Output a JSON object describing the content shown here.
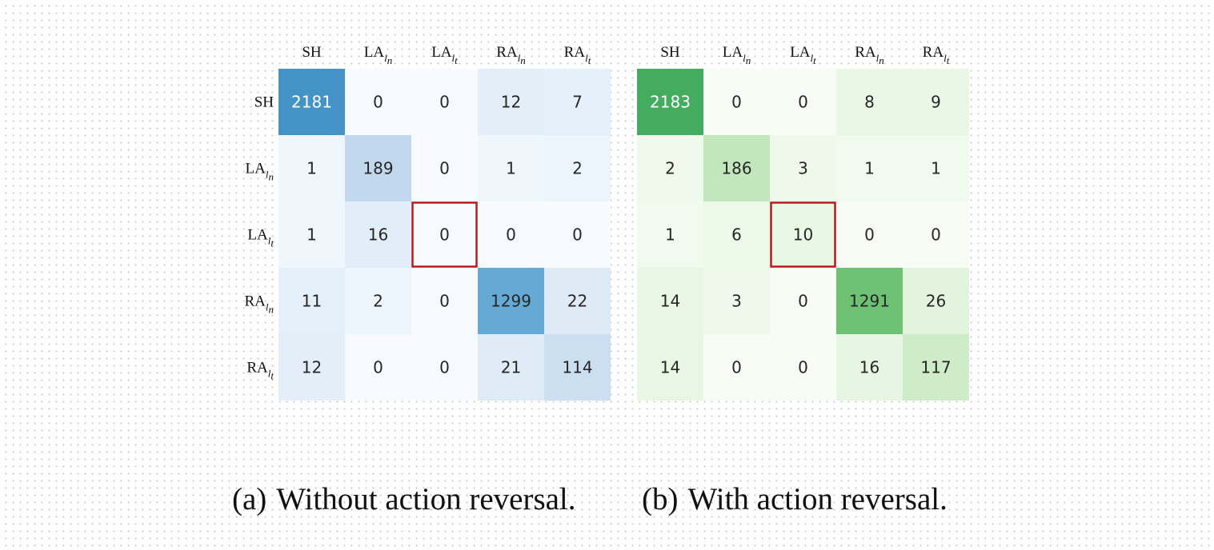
{
  "chart_data": [
    {
      "type": "heatmap",
      "caption_tag": "(a)",
      "caption_text": "Without action reversal.",
      "colormap": "Blues",
      "colors": {
        "low": "#f7fbff",
        "high": "#08306b",
        "text_dark": "#262626",
        "text_light": "#ffffff",
        "highlight": "#b71c1c"
      },
      "labels": [
        {
          "base": "SH",
          "sub": ""
        },
        {
          "base": "LA",
          "sub": "ln"
        },
        {
          "base": "LA",
          "sub": "lt"
        },
        {
          "base": "RA",
          "sub": "ln"
        },
        {
          "base": "RA",
          "sub": "lt"
        }
      ],
      "values": [
        [
          2181,
          0,
          0,
          12,
          7
        ],
        [
          1,
          189,
          0,
          1,
          2
        ],
        [
          1,
          16,
          0,
          0,
          0
        ],
        [
          11,
          2,
          0,
          1299,
          22
        ],
        [
          12,
          0,
          0,
          21,
          114
        ]
      ],
      "highlight_cell": [
        2,
        2
      ]
    },
    {
      "type": "heatmap",
      "caption_tag": "(b)",
      "caption_text": "With action reversal.",
      "colormap": "Greens",
      "colors": {
        "low": "#f7fcf5",
        "high": "#00441b",
        "text_dark": "#262626",
        "text_light": "#ffffff",
        "highlight": "#b71c1c"
      },
      "labels": [
        {
          "base": "SH",
          "sub": ""
        },
        {
          "base": "LA",
          "sub": "ln"
        },
        {
          "base": "LA",
          "sub": "lt"
        },
        {
          "base": "RA",
          "sub": "ln"
        },
        {
          "base": "RA",
          "sub": "lt"
        }
      ],
      "values": [
        [
          2183,
          0,
          0,
          8,
          9
        ],
        [
          2,
          186,
          3,
          1,
          1
        ],
        [
          1,
          6,
          10,
          0,
          0
        ],
        [
          14,
          3,
          0,
          1291,
          26
        ],
        [
          14,
          0,
          0,
          16,
          117
        ]
      ],
      "highlight_cell": [
        2,
        2
      ]
    }
  ]
}
